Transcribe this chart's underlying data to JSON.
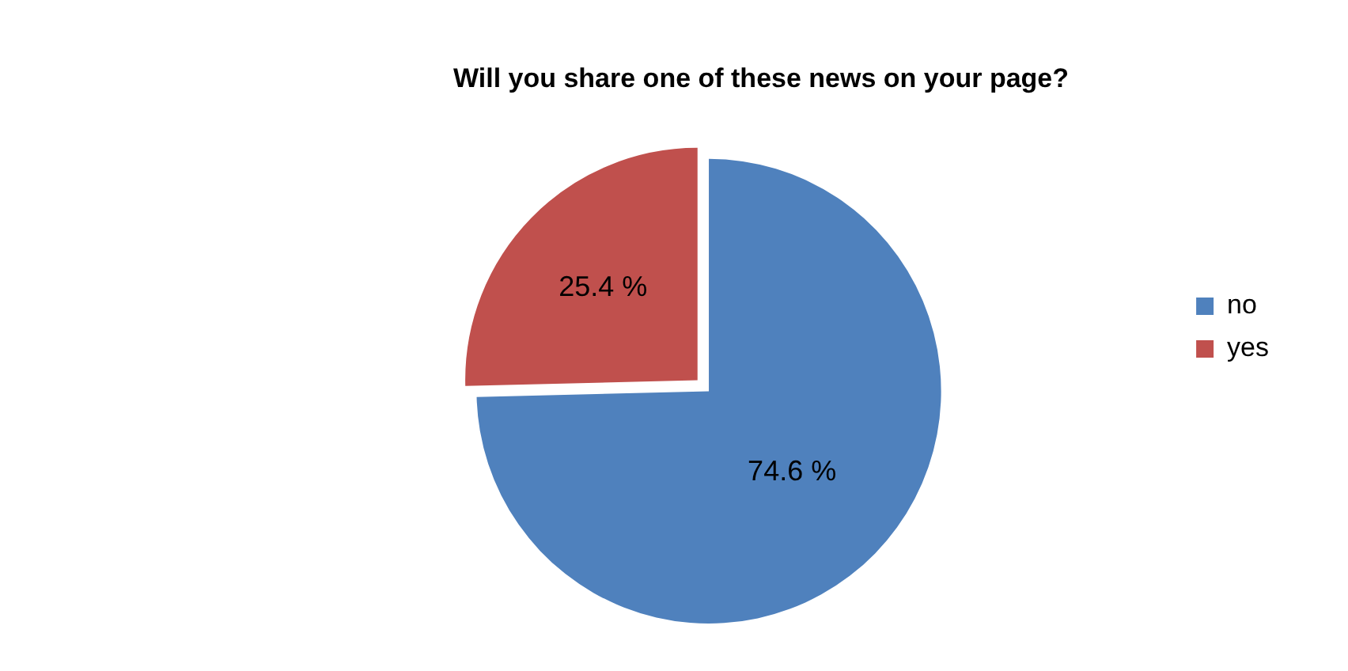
{
  "chart_data": {
    "type": "pie",
    "title": "Will you share one of these news on your page?",
    "categories": [
      "no",
      "yes"
    ],
    "values": [
      74.6,
      25.4
    ],
    "colors": [
      "#4f81bd",
      "#c0504d"
    ],
    "value_labels": [
      "74.6 %",
      "25.4 %"
    ],
    "legend": "right"
  }
}
